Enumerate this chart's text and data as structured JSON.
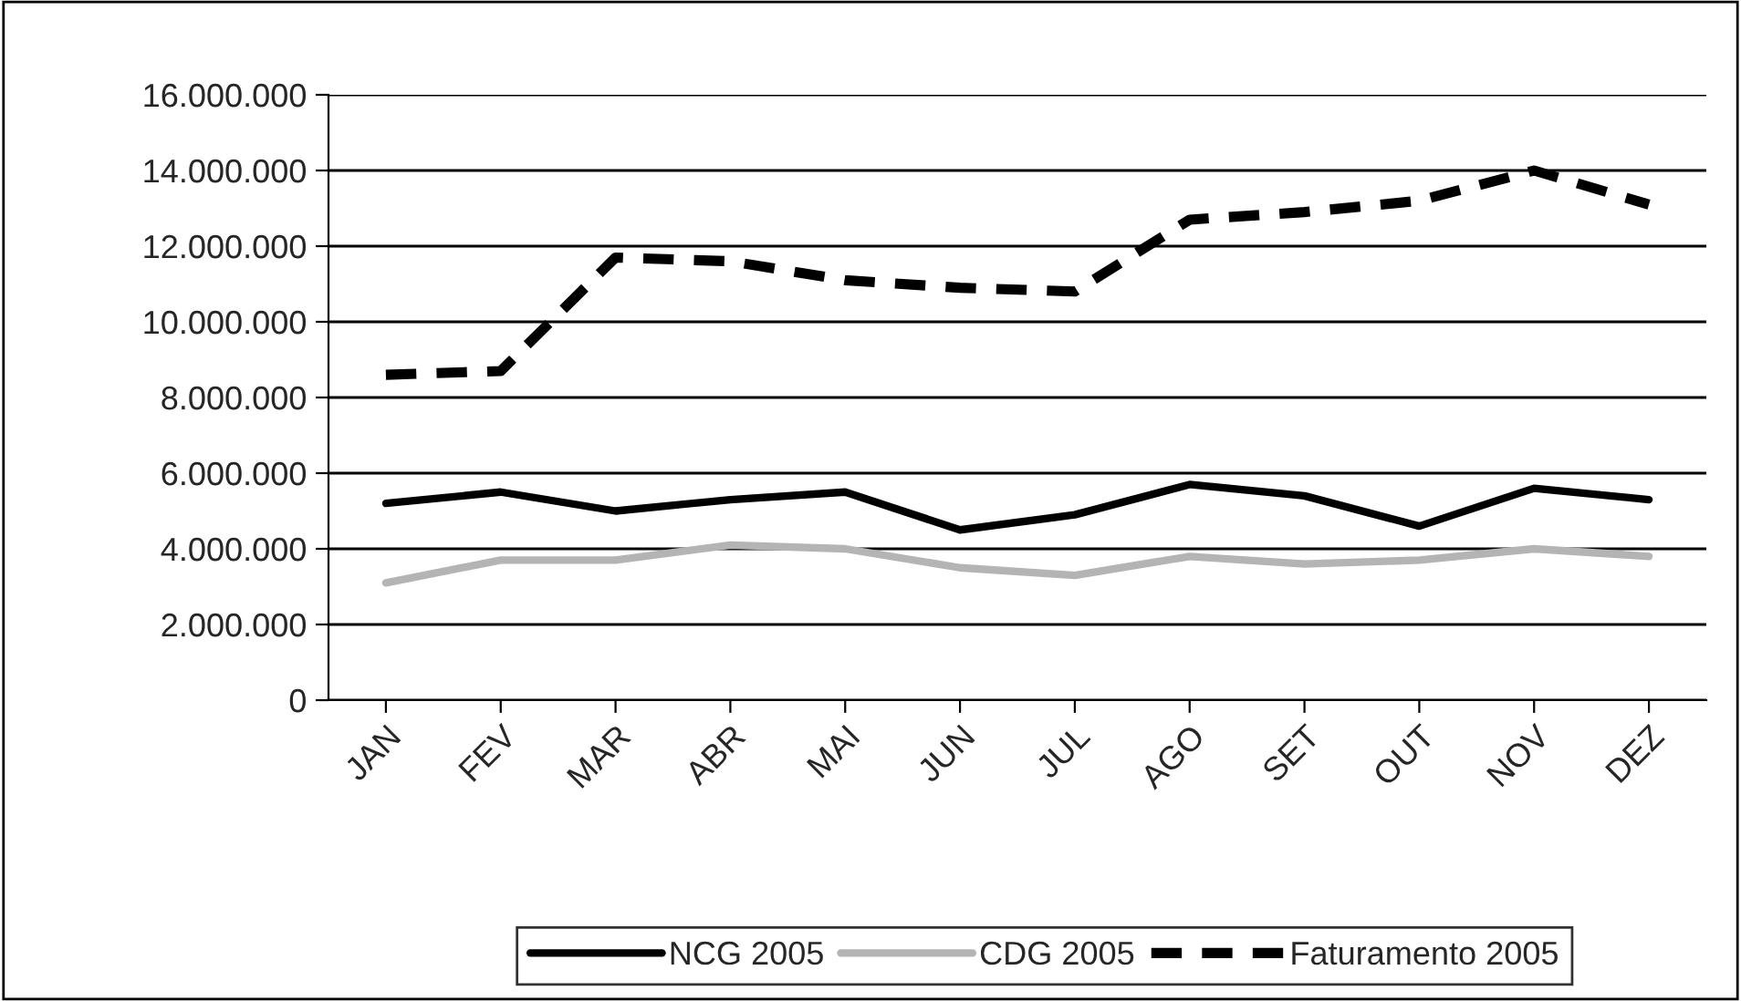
{
  "chart_data": {
    "type": "line",
    "categories": [
      "JAN",
      "FEV",
      "MAR",
      "ABR",
      "MAI",
      "JUN",
      "JUL",
      "AGO",
      "SET",
      "OUT",
      "NOV",
      "DEZ"
    ],
    "series": [
      {
        "name": "NCG 2005",
        "color": "#000000",
        "line_style": "solid",
        "values": [
          5200000,
          5500000,
          5000000,
          5300000,
          5500000,
          4500000,
          4900000,
          5700000,
          5400000,
          4600000,
          5600000,
          5300000
        ]
      },
      {
        "name": "CDG 2005",
        "color": "#b4b4b4",
        "line_style": "solid",
        "values": [
          3100000,
          3700000,
          3700000,
          4100000,
          4000000,
          3500000,
          3300000,
          3800000,
          3600000,
          3700000,
          4000000,
          3800000
        ]
      },
      {
        "name": "Faturamento 2005",
        "color": "#000000",
        "line_style": "dashed",
        "values": [
          8600000,
          8700000,
          11700000,
          11600000,
          11100000,
          10900000,
          10800000,
          12700000,
          12900000,
          13200000,
          14000000,
          13100000
        ]
      }
    ],
    "ylim": [
      0,
      16000000
    ],
    "yticks": [
      {
        "value": 0,
        "label": "0"
      },
      {
        "value": 2000000,
        "label": "2.000.000"
      },
      {
        "value": 4000000,
        "label": "4.000.000"
      },
      {
        "value": 6000000,
        "label": "6.000.000"
      },
      {
        "value": 8000000,
        "label": "8.000.000"
      },
      {
        "value": 10000000,
        "label": "10.000.000"
      },
      {
        "value": 12000000,
        "label": "12.000.000"
      },
      {
        "value": 14000000,
        "label": "14.000.000"
      },
      {
        "value": 16000000,
        "label": "16.000.000"
      }
    ],
    "grid": "y",
    "legend": "bottom",
    "marker": "none"
  }
}
